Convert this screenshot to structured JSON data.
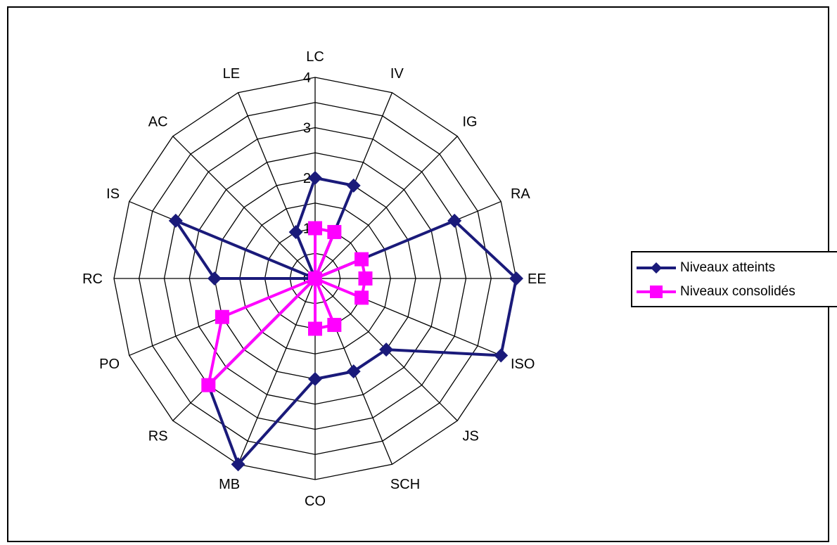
{
  "chart_data": {
    "type": "radar",
    "categories": [
      "LC",
      "IV",
      "IG",
      "RA",
      "EE",
      "ISO",
      "JS",
      "SCH",
      "CO",
      "MB",
      "RS",
      "PO",
      "RC",
      "IS",
      "AC",
      "LE"
    ],
    "rmax": 4,
    "ticks": [
      "0",
      "1",
      "2",
      "3",
      "4"
    ],
    "grid": true,
    "legend_position": "right",
    "series": [
      {
        "name": "Niveaux atteints",
        "color": "#1a1a7a",
        "marker": "diamond",
        "values": [
          2,
          2,
          0,
          3,
          4,
          4,
          2,
          2,
          2,
          4,
          3,
          0,
          2,
          3,
          0,
          1
        ]
      },
      {
        "name": "Niveaux consolidés",
        "color": "#ff00ff",
        "marker": "square",
        "values": [
          1,
          1,
          0,
          1,
          1,
          1,
          0,
          1,
          1,
          0,
          3,
          2,
          0,
          0,
          0,
          0
        ]
      }
    ]
  }
}
